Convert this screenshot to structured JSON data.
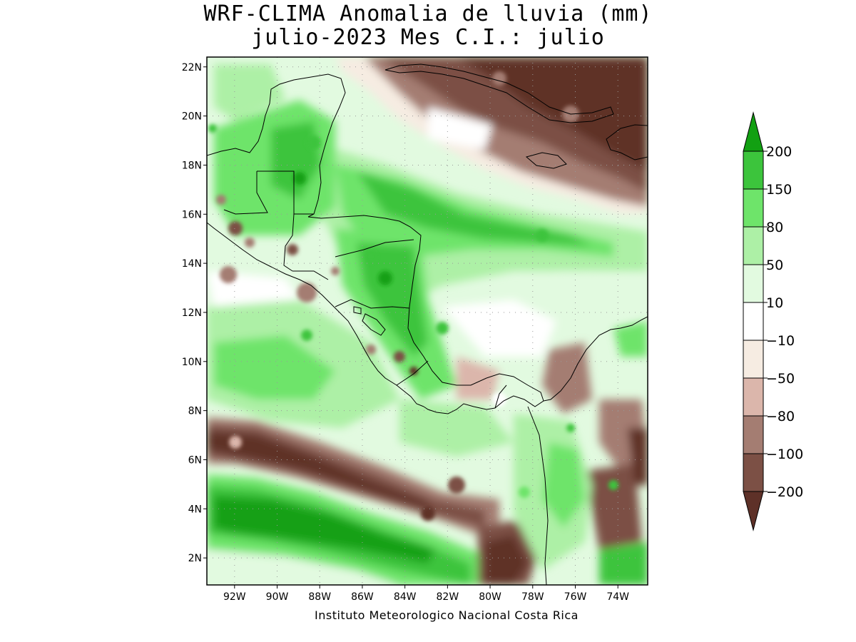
{
  "title_line1": "WRF-CLIMA Anomalia de lluvia (mm)",
  "title_line2": "julio-2023 Mes C.I.: julio",
  "credit": "Instituto Meteorologico Nacional Costa Rica",
  "map": {
    "lon_range": [
      -93.3,
      -72.6
    ],
    "lat_range": [
      0.9,
      22.4
    ],
    "lat_ticks": [
      {
        "value": 2,
        "label": "2N"
      },
      {
        "value": 4,
        "label": "4N"
      },
      {
        "value": 6,
        "label": "6N"
      },
      {
        "value": 8,
        "label": "8N"
      },
      {
        "value": 10,
        "label": "10N"
      },
      {
        "value": 12,
        "label": "12N"
      },
      {
        "value": 14,
        "label": "14N"
      },
      {
        "value": 16,
        "label": "16N"
      },
      {
        "value": 18,
        "label": "18N"
      },
      {
        "value": 20,
        "label": "20N"
      },
      {
        "value": 22,
        "label": "22N"
      }
    ],
    "lon_ticks": [
      {
        "value": -92,
        "label": "92W"
      },
      {
        "value": -90,
        "label": "90W"
      },
      {
        "value": -88,
        "label": "88W"
      },
      {
        "value": -86,
        "label": "86W"
      },
      {
        "value": -84,
        "label": "84W"
      },
      {
        "value": -82,
        "label": "82W"
      },
      {
        "value": -80,
        "label": "80W"
      },
      {
        "value": -78,
        "label": "78W"
      },
      {
        "value": -76,
        "label": "76W"
      },
      {
        "value": -74,
        "label": "74W"
      }
    ]
  },
  "colorbar": {
    "colors": {
      "lt_m200": "#5e3128",
      "m200_m100": "#7c5045",
      "m100_m80": "#a47d72",
      "m80_m50": "#dbb6ab",
      "m50_m10": "#f6ece2",
      "m10_p10": "#ffffff",
      "p10_p50": "#e2fae0",
      "p50_p80": "#adf0a6",
      "p80_p150": "#6ee46a",
      "p150_p200": "#3cc43c",
      "gt_p200": "#12a012"
    },
    "levels": [
      "-200",
      "-100",
      "-80",
      "-50",
      "-10",
      "10",
      "50",
      "80",
      "150",
      "200"
    ]
  }
}
